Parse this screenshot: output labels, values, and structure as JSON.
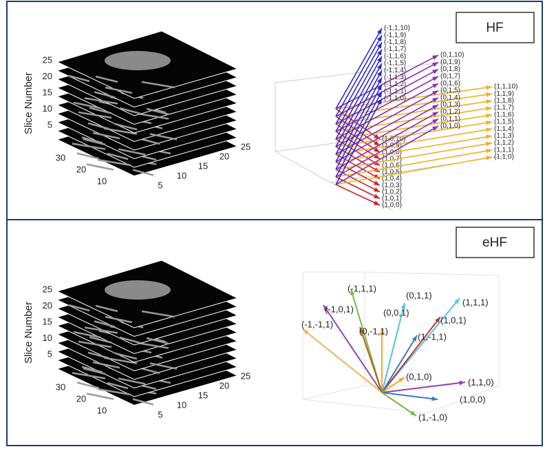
{
  "panels": [
    {
      "label": "HF",
      "volume": {
        "axis_label": "Slice Number",
        "z_ticks": [
          "25",
          "20",
          "15",
          "10",
          "5"
        ],
        "y_ticks": [
          "30",
          "20",
          "10"
        ],
        "x_ticks": [
          "5",
          "10",
          "15",
          "20",
          "25"
        ]
      },
      "vectors": {
        "blue": [
          "(-1,1,10)",
          "(-1,1,9)",
          "(-1,1,8)",
          "(-1,1,7)",
          "(-1,1,6)",
          "(-1,1,5)",
          "(-1,1,4)",
          "(-1,1,3)",
          "(-1,1,2)",
          "(-1,1,1)",
          "(-1,1,0)"
        ],
        "purple": [
          "(0,1,10)",
          "(0,1,9)",
          "(0,1,8)",
          "(0,1,7)",
          "(0,1,6)",
          "(0,1,5)",
          "(0,1,4)",
          "(0,1,3)",
          "(0,1,2)",
          "(0,1,1)",
          "(0,1,0)"
        ],
        "yellow": [
          "(1,1,10)",
          "(1,1,9)",
          "(1,1,8)",
          "(1,1,7)",
          "(1,1,6)",
          "(1,1,5)",
          "(1,1,4)",
          "(1,1,3)",
          "(1,1,2)",
          "(1,1,1)",
          "(1,1,0)"
        ],
        "red": [
          "(1,0,10)",
          "(1,0,9)",
          "(1,0,8)",
          "(1,0,7)",
          "(1,0,6)",
          "(1,0,5)",
          "(1,0,4)",
          "(1,0,3)",
          "(1,0,2)",
          "(1,0,1)",
          "(1,0,0)"
        ]
      }
    },
    {
      "label": "eHF",
      "volume": {
        "axis_label": "Slice Number",
        "z_ticks": [
          "25",
          "20",
          "15",
          "10",
          "5"
        ],
        "y_ticks": [
          "30",
          "20",
          "10"
        ],
        "x_ticks": [
          "5",
          "10",
          "15",
          "20",
          "25"
        ]
      },
      "vectors": [
        "(-1,1,1)",
        "(0,1,1)",
        "(1,1,1)",
        "(-1,0,1)",
        "(0,0,1)",
        "(1,0,1)",
        "(-1,-1,1)",
        "(0,-1,1)",
        "(1,-1,1)",
        "(0,1,0)",
        "(1,1,0)",
        "(1,0,0)",
        "(1,-1,0)"
      ]
    }
  ]
}
